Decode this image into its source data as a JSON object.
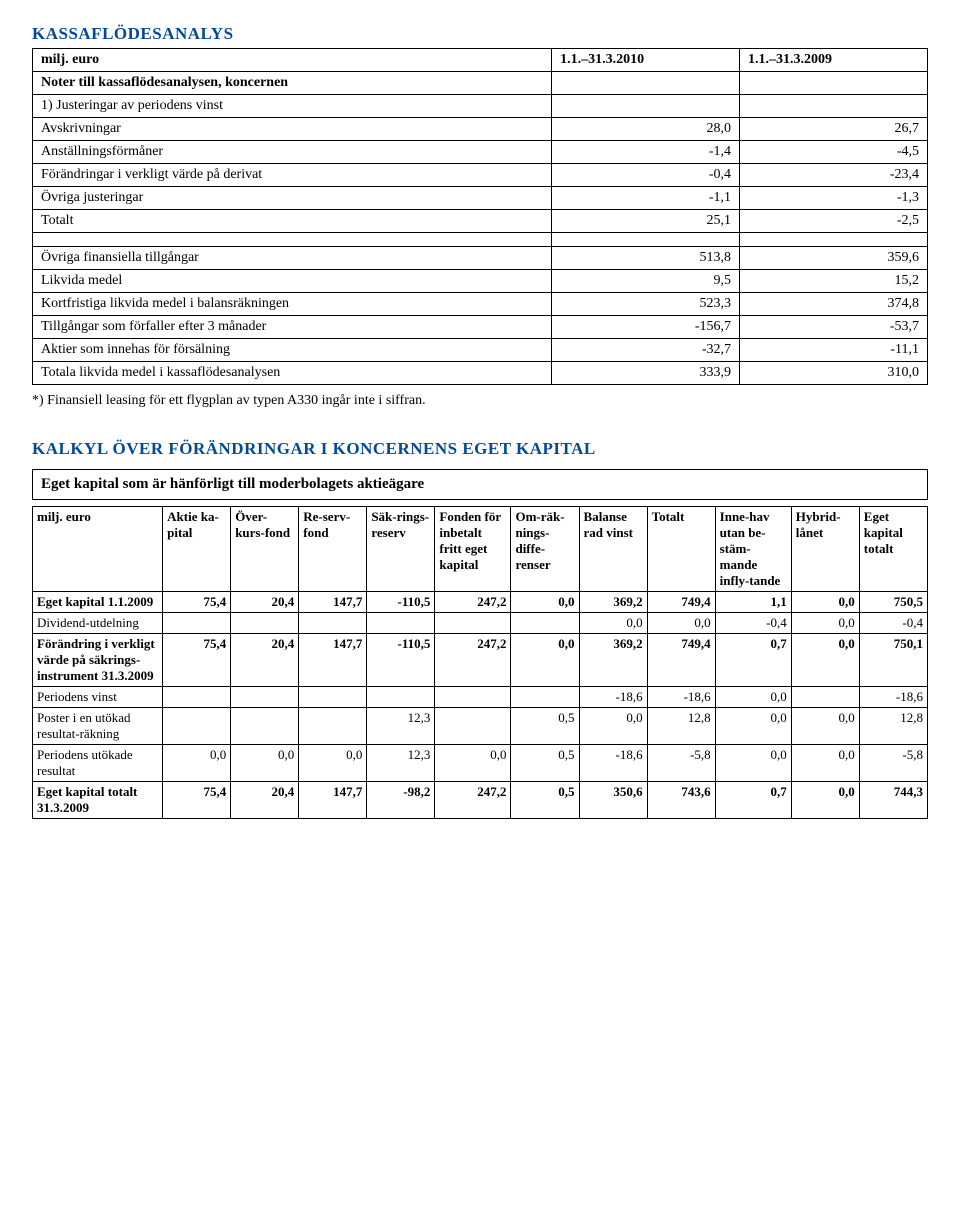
{
  "h1": "KASSAFLÖDESANALYS",
  "t1": {
    "headers": [
      "milj. euro",
      "1.1.–31.3.2010",
      "1.1.–31.3.2009"
    ],
    "section1_title": "Noter till kassaflödesanalysen, koncernen",
    "section1_sub": "1) Justeringar av periodens vinst",
    "rows_a": [
      [
        "Avskrivningar",
        "28,0",
        "26,7"
      ],
      [
        "Anställningsförmåner",
        "-1,4",
        "-4,5"
      ],
      [
        "Förändringar i verkligt värde på derivat",
        "-0,4",
        "-23,4"
      ],
      [
        "Övriga justeringar",
        "-1,1",
        "-1,3"
      ],
      [
        "Totalt",
        "25,1",
        "-2,5"
      ]
    ],
    "rows_b": [
      [
        "Övriga finansiella tillgångar",
        "513,8",
        "359,6"
      ],
      [
        "Likvida medel",
        "9,5",
        "15,2"
      ],
      [
        "Kortfristiga likvida medel i balansräkningen",
        "523,3",
        "374,8"
      ],
      [
        "Tillgångar som förfaller efter 3 månader",
        "-156,7",
        "-53,7"
      ],
      [
        "Aktier som innehas för försälning",
        "-32,7",
        "-11,1"
      ],
      [
        "Totala likvida medel i kassaflödesanalysen",
        "333,9",
        "310,0"
      ]
    ]
  },
  "footnote": "*) Finansiell leasing för ett flygplan av typen A330 ingår inte i siffran.",
  "h2": "KALKYL ÖVER FÖRÄNDRINGAR I KONCERNENS EGET KAPITAL",
  "subhead": "Eget kapital som är hänförligt till moderbolagets aktieägare",
  "t2": {
    "headers": [
      "milj. euro",
      "Aktie ka-pital",
      "Över-kurs-fond",
      "Re-serv-fond",
      "Säk-rings-reserv",
      "Fonden för inbetalt fritt eget kapital",
      "Om-räk-nings-diffe-renser",
      "Balanse rad vinst",
      "Totalt",
      "Inne-hav utan be-stäm-mande infly-tande",
      "Hybrid-lånet",
      "Eget kapital totalt"
    ],
    "rows": [
      {
        "label": "Eget kapital 1.1.2009",
        "bold": true,
        "vals": [
          "75,4",
          "20,4",
          "147,7",
          "-110,5",
          "247,2",
          "0,0",
          "369,2",
          "749,4",
          "1,1",
          "0,0",
          "750,5"
        ]
      },
      {
        "label": "Dividend-utdelning",
        "bold": false,
        "vals": [
          "",
          "",
          "",
          "",
          "",
          "",
          "0,0",
          "0,0",
          "-0,4",
          "0,0",
          "-0,4"
        ]
      },
      {
        "label": "Förändring i verkligt värde på säkrings-instrument 31.3.2009",
        "bold": true,
        "vals": [
          "75,4",
          "20,4",
          "147,7",
          "-110,5",
          "247,2",
          "0,0",
          "369,2",
          "749,4",
          "0,7",
          "0,0",
          "750,1"
        ]
      },
      {
        "label": "Periodens vinst",
        "bold": false,
        "vals": [
          "",
          "",
          "",
          "",
          "",
          "",
          "-18,6",
          "-18,6",
          "0,0",
          "",
          "-18,6"
        ]
      },
      {
        "label": "Poster i en utökad resultat-räkning",
        "bold": false,
        "vals": [
          "",
          "",
          "",
          "12,3",
          "",
          "0,5",
          "0,0",
          "12,8",
          "0,0",
          "0,0",
          "12,8"
        ]
      },
      {
        "label": "Periodens utökade resultat",
        "bold": false,
        "vals": [
          "0,0",
          "0,0",
          "0,0",
          "12,3",
          "0,0",
          "0,5",
          "-18,6",
          "-5,8",
          "0,0",
          "0,0",
          "-5,8"
        ]
      },
      {
        "label": "Eget kapital totalt 31.3.2009",
        "bold": true,
        "vals": [
          "75,4",
          "20,4",
          "147,7",
          "-98,2",
          "247,2",
          "0,5",
          "350,6",
          "743,6",
          "0,7",
          "0,0",
          "744,3"
        ]
      }
    ]
  },
  "colors": {
    "heading": "#004a99",
    "text": "#000000",
    "border": "#000000",
    "bg": "#ffffff"
  }
}
